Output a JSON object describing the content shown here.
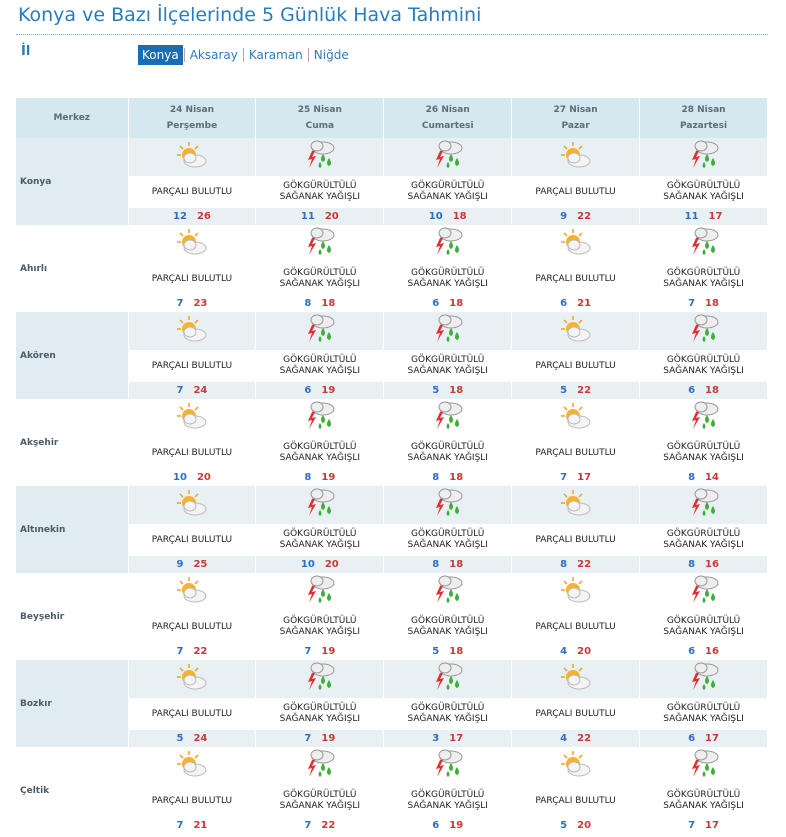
{
  "header": {
    "title": "Konya ve Bazı İlçelerinde 5 Günlük Hava Tahmini",
    "filter_label": "İl",
    "tabs": [
      "Konya",
      "Aksaray",
      "Karaman",
      "Niğde"
    ],
    "active_tab": 0
  },
  "table": {
    "corner": "Merkez",
    "days": [
      {
        "date": "24 Nisan",
        "weekday": "Perşembe"
      },
      {
        "date": "25 Nisan",
        "weekday": "Cuma"
      },
      {
        "date": "26 Nisan",
        "weekday": "Cumartesi"
      },
      {
        "date": "27 Nisan",
        "weekday": "Pazar"
      },
      {
        "date": "28 Nisan",
        "weekday": "Pazartesi"
      }
    ],
    "rows": [
      {
        "name": "Konya",
        "forecasts": [
          {
            "condition": "PARÇALI BULUTLU",
            "min": 12,
            "max": 26
          },
          {
            "condition": "GÖKGÜRÜLTÜLÜ SAĞANAK YAĞIŞLI",
            "min": 11,
            "max": 20
          },
          {
            "condition": "GÖKGÜRÜLTÜLÜ SAĞANAK YAĞIŞLI",
            "min": 10,
            "max": 18
          },
          {
            "condition": "PARÇALI BULUTLU",
            "min": 9,
            "max": 22
          },
          {
            "condition": "GÖKGÜRÜLTÜLÜ SAĞANAK YAĞIŞLI",
            "min": 11,
            "max": 17
          }
        ]
      },
      {
        "name": "Ahırlı",
        "forecasts": [
          {
            "condition": "PARÇALI BULUTLU",
            "min": 7,
            "max": 23
          },
          {
            "condition": "GÖKGÜRÜLTÜLÜ SAĞANAK YAĞIŞLI",
            "min": 8,
            "max": 18
          },
          {
            "condition": "GÖKGÜRÜLTÜLÜ SAĞANAK YAĞIŞLI",
            "min": 6,
            "max": 18
          },
          {
            "condition": "PARÇALI BULUTLU",
            "min": 6,
            "max": 21
          },
          {
            "condition": "GÖKGÜRÜLTÜLÜ SAĞANAK YAĞIŞLI",
            "min": 7,
            "max": 18
          }
        ]
      },
      {
        "name": "Akören",
        "forecasts": [
          {
            "condition": "PARÇALI BULUTLU",
            "min": 7,
            "max": 24
          },
          {
            "condition": "GÖKGÜRÜLTÜLÜ SAĞANAK YAĞIŞLI",
            "min": 6,
            "max": 19
          },
          {
            "condition": "GÖKGÜRÜLTÜLÜ SAĞANAK YAĞIŞLI",
            "min": 5,
            "max": 18
          },
          {
            "condition": "PARÇALI BULUTLU",
            "min": 5,
            "max": 22
          },
          {
            "condition": "GÖKGÜRÜLTÜLÜ SAĞANAK YAĞIŞLI",
            "min": 6,
            "max": 18
          }
        ]
      },
      {
        "name": "Akşehir",
        "forecasts": [
          {
            "condition": "PARÇALI BULUTLU",
            "min": 10,
            "max": 20
          },
          {
            "condition": "GÖKGÜRÜLTÜLÜ SAĞANAK YAĞIŞLI",
            "min": 8,
            "max": 19
          },
          {
            "condition": "GÖKGÜRÜLTÜLÜ SAĞANAK YAĞIŞLI",
            "min": 8,
            "max": 18
          },
          {
            "condition": "PARÇALI BULUTLU",
            "min": 7,
            "max": 17
          },
          {
            "condition": "GÖKGÜRÜLTÜLÜ SAĞANAK YAĞIŞLI",
            "min": 8,
            "max": 14
          }
        ]
      },
      {
        "name": "Altınekin",
        "forecasts": [
          {
            "condition": "PARÇALI BULUTLU",
            "min": 9,
            "max": 25
          },
          {
            "condition": "GÖKGÜRÜLTÜLÜ SAĞANAK YAĞIŞLI",
            "min": 10,
            "max": 20
          },
          {
            "condition": "GÖKGÜRÜLTÜLÜ SAĞANAK YAĞIŞLI",
            "min": 8,
            "max": 18
          },
          {
            "condition": "PARÇALI BULUTLU",
            "min": 8,
            "max": 22
          },
          {
            "condition": "GÖKGÜRÜLTÜLÜ SAĞANAK YAĞIŞLI",
            "min": 8,
            "max": 16
          }
        ]
      },
      {
        "name": "Beyşehir",
        "forecasts": [
          {
            "condition": "PARÇALI BULUTLU",
            "min": 7,
            "max": 22
          },
          {
            "condition": "GÖKGÜRÜLTÜLÜ SAĞANAK YAĞIŞLI",
            "min": 7,
            "max": 19
          },
          {
            "condition": "GÖKGÜRÜLTÜLÜ SAĞANAK YAĞIŞLI",
            "min": 5,
            "max": 18
          },
          {
            "condition": "PARÇALI BULUTLU",
            "min": 4,
            "max": 20
          },
          {
            "condition": "GÖKGÜRÜLTÜLÜ SAĞANAK YAĞIŞLI",
            "min": 6,
            "max": 16
          }
        ]
      },
      {
        "name": "Bozkır",
        "forecasts": [
          {
            "condition": "PARÇALI BULUTLU",
            "min": 5,
            "max": 24
          },
          {
            "condition": "GÖKGÜRÜLTÜLÜ SAĞANAK YAĞIŞLI",
            "min": 7,
            "max": 19
          },
          {
            "condition": "GÖKGÜRÜLTÜLÜ SAĞANAK YAĞIŞLI",
            "min": 3,
            "max": 17
          },
          {
            "condition": "PARÇALI BULUTLU",
            "min": 4,
            "max": 22
          },
          {
            "condition": "GÖKGÜRÜLTÜLÜ SAĞANAK YAĞIŞLI",
            "min": 6,
            "max": 17
          }
        ]
      },
      {
        "name": "Çeltik",
        "forecasts": [
          {
            "condition": "PARÇALI BULUTLU",
            "min": 7,
            "max": 21
          },
          {
            "condition": "GÖKGÜRÜLTÜLÜ SAĞANAK YAĞIŞLI",
            "min": 7,
            "max": 22
          },
          {
            "condition": "GÖKGÜRÜLTÜLÜ SAĞANAK YAĞIŞLI",
            "min": 6,
            "max": 19
          },
          {
            "condition": "PARÇALI BULUTLU",
            "min": 5,
            "max": 20
          },
          {
            "condition": "GÖKGÜRÜLTÜLÜ SAĞANAK YAĞIŞLI",
            "min": 7,
            "max": 17
          }
        ]
      }
    ]
  }
}
